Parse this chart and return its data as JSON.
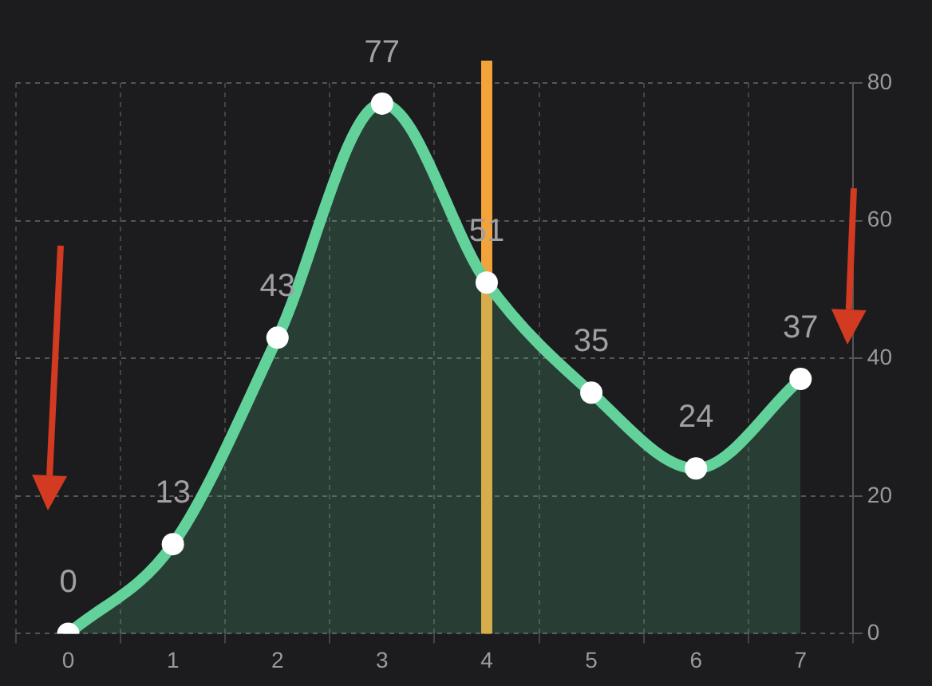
{
  "chart_data": {
    "type": "area",
    "categories": [
      "0",
      "1",
      "2",
      "3",
      "4",
      "5",
      "6",
      "7"
    ],
    "series": [
      {
        "color": "#62d29a",
        "values": [
          0,
          13,
          43,
          77,
          51,
          35,
          24,
          37
        ]
      }
    ],
    "ylim": [
      0,
      80
    ],
    "yticks": [
      0,
      20,
      40,
      60,
      80
    ],
    "grid": true,
    "data_labels": true,
    "marker": "circle",
    "legend": false,
    "ref_lines": [
      {
        "axis": "x",
        "value": "4",
        "color": "#f2a33a"
      }
    ]
  }
}
